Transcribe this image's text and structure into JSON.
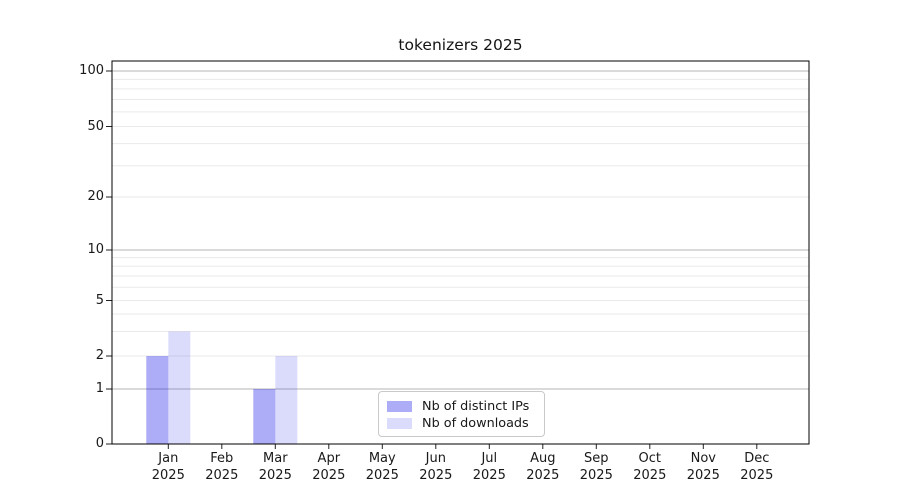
{
  "chart_data": {
    "type": "bar",
    "title": "tokenizers 2025",
    "categories": [
      "Jan",
      "Feb",
      "Mar",
      "Apr",
      "May",
      "Jun",
      "Jul",
      "Aug",
      "Sep",
      "Oct",
      "Nov",
      "Dec"
    ],
    "category_year": "2025",
    "series": [
      {
        "name": "Nb of distinct IPs",
        "color": "#0d0de7",
        "opacity": 0.34,
        "values": [
          2,
          0,
          1,
          0,
          0,
          0,
          0,
          0,
          0,
          0,
          0,
          0
        ]
      },
      {
        "name": "Nb of downloads",
        "color": "#0d0de7",
        "opacity": 0.15,
        "values": [
          3,
          0,
          2,
          0,
          0,
          0,
          0,
          0,
          0,
          0,
          0,
          0
        ]
      }
    ],
    "xlabel": "",
    "ylabel": "",
    "y_axis": {
      "scale": "symlog",
      "ticks": [
        0,
        1,
        2,
        5,
        10,
        20,
        50,
        100
      ],
      "ylim": [
        0,
        110
      ],
      "major_gridlines": [
        1,
        10,
        100
      ],
      "minor_gridlines": [
        2,
        3,
        4,
        5,
        6,
        7,
        8,
        9,
        20,
        30,
        40,
        50,
        60,
        70,
        80,
        90
      ]
    },
    "grid": {
      "major_color": "#b5b5b5",
      "minor_color": "#eaeaea"
    },
    "axis_color": "#000000",
    "tick_color": "#222222",
    "legend": {
      "position": "lower center"
    }
  }
}
